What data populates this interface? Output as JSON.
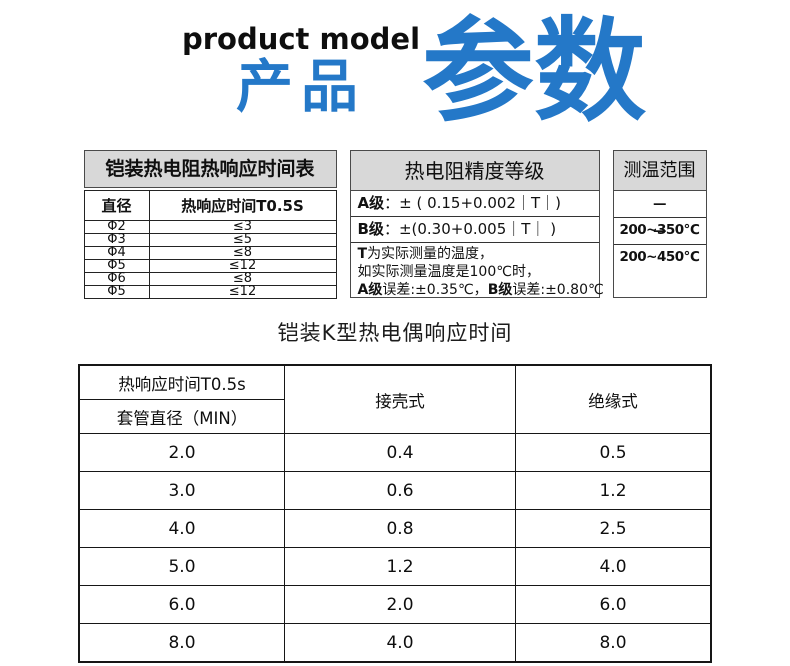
{
  "colors": {
    "accent_blue": "#2478c8",
    "header_gray": "#d8d8d8"
  },
  "header": {
    "eyebrow": "product model",
    "title_small": "产品",
    "title_large": "参数"
  },
  "response_table": {
    "title": "铠装热电阻热响应时间表",
    "col1": "直径",
    "col2": "热响应时间T0.5S",
    "rows": [
      {
        "d": "Φ2",
        "t": "≤3"
      },
      {
        "d": "Φ3",
        "t": "≤5"
      },
      {
        "d": "Φ4",
        "t": "≤8"
      },
      {
        "d": "Φ5",
        "t": "≤12"
      },
      {
        "d": "Φ6",
        "t": "≤8"
      },
      {
        "d": "Φ5",
        "t": "≤12"
      }
    ]
  },
  "precision": {
    "title": "热电阻精度等级",
    "row_a_label": "A级",
    "row_a_value": "：± ( 0.15+0.002｜T｜)",
    "row_b_label": "B级",
    "row_b_value": "：±(0.30+0.005｜T｜ )",
    "note1_bold": "T",
    "note1_rest": "为实际测量的温度，",
    "note2": "如实际测量温度是100℃时，",
    "note3_bold1": "A级",
    "note3_text1": "误差:±0.35℃，",
    "note3_bold2": "B级",
    "note3_text2": "误差:±0.80℃"
  },
  "range": {
    "title": "测温范围",
    "rows": [
      "—200~350℃",
      "—200~450℃"
    ]
  },
  "k_table": {
    "title": "铠装K型热电偶响应时间",
    "header_top": "热响应时间T0.5s",
    "header_bottom": "套管直径（MIN）",
    "col2": "接壳式",
    "col3": "绝缘式",
    "rows": [
      [
        "2.0",
        "0.4",
        "0.5"
      ],
      [
        "3.0",
        "0.6",
        "1.2"
      ],
      [
        "4.0",
        "0.8",
        "2.5"
      ],
      [
        "5.0",
        "1.2",
        "4.0"
      ],
      [
        "6.0",
        "2.0",
        "6.0"
      ],
      [
        "8.0",
        "4.0",
        "8.0"
      ]
    ]
  }
}
